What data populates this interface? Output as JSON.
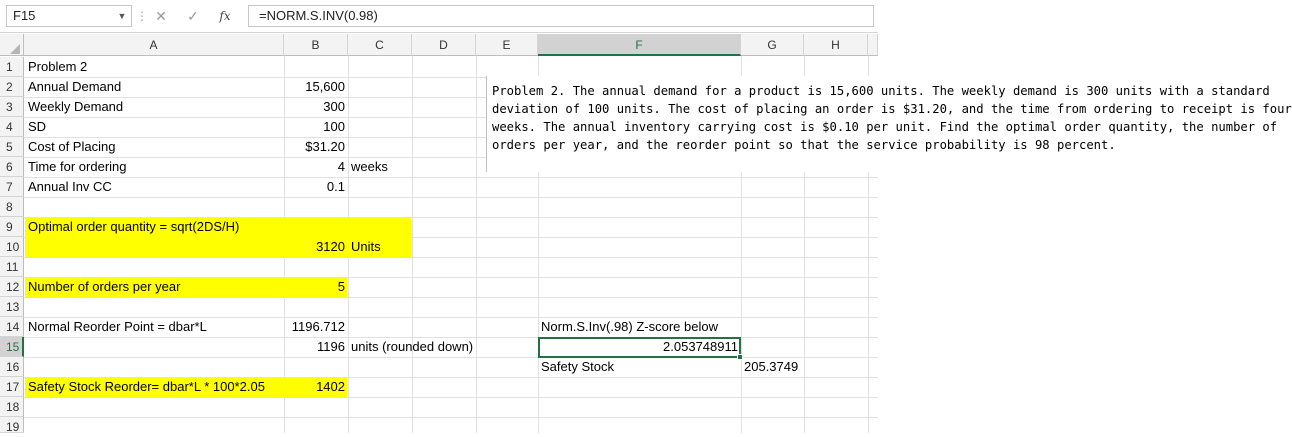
{
  "formula_bar": {
    "name_box": "F15",
    "cancel_icon": "✕",
    "enter_icon": "✓",
    "fx_label": "fx",
    "formula": "=NORM.S.INV(0.98)"
  },
  "columns": [
    "A",
    "B",
    "C",
    "D",
    "E",
    "F",
    "G",
    "H"
  ],
  "rows": [
    "1",
    "2",
    "3",
    "4",
    "5",
    "6",
    "7",
    "8",
    "9",
    "10",
    "11",
    "12",
    "13",
    "14",
    "15",
    "16",
    "17",
    "18",
    "19"
  ],
  "selected": {
    "column": "F",
    "row": "15"
  },
  "cells": {
    "A1": "Problem 2",
    "A2": "Annual Demand",
    "B2": "15,600",
    "A3": "Weekly Demand",
    "B3": "300",
    "A4": "SD",
    "B4": "100",
    "A5": "Cost of Placing",
    "B5": "$31.20",
    "A6": "Time for ordering",
    "B6": "4",
    "C6": "weeks",
    "A7": "Annual Inv CC",
    "B7": "0.1",
    "A9": "Optimal order quantity = sqrt(2DS/H)",
    "B10": "3120",
    "C10": "Units",
    "A12": "Number of orders per year",
    "B12": "5",
    "A14": "Normal Reorder Point = dbar*L",
    "B14": "1196.712",
    "F14": "Norm.S.Inv(.98) Z-score below",
    "B15": "1196",
    "C15": "units (rounded down)",
    "F15": "2.053748911",
    "F16": "Safety Stock",
    "G16": "205.3749",
    "A17": "Safety Stock Reorder= dbar*L * 100*2.05",
    "B17": "1402"
  },
  "text_box": {
    "lines": [
      "Problem 2. The annual demand for a product is 15,600 units. The weekly demand is 300 units with a standard",
      "deviation of 100 units. The cost of placing an order is $31.20, and the time from ordering to receipt is four",
      "weeks. The annual inventory carrying cost is $0.10 per unit. Find the optimal order quantity, the number of",
      "orders per year, and the reorder point so that the service probability is 98 percent."
    ]
  },
  "colors": {
    "highlight": "#ffff00",
    "selection": "#217346",
    "header_bg": "#f3f3f3"
  }
}
